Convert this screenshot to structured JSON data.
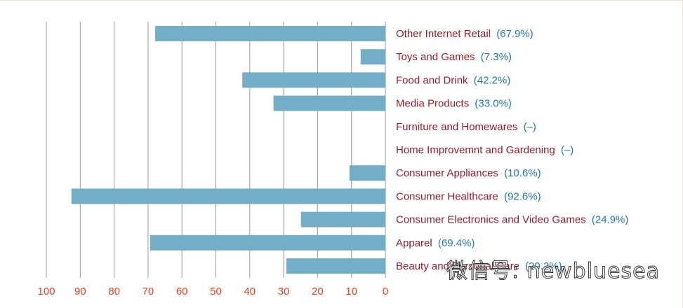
{
  "chart_data": {
    "type": "bar",
    "orientation": "horizontal",
    "direction": "right-to-left",
    "categories": [
      "Other Internet Retail",
      "Toys and Games",
      "Food and Drink",
      "Media Products",
      "Furniture and Homewares",
      "Home Improvemnt and Gardening",
      "Consumer Appliances",
      "Consumer Healthcare",
      "Consumer Electronics and Video Games",
      "Apparel",
      "Beauty and Personal Care"
    ],
    "values": [
      67.9,
      7.3,
      42.2,
      33.0,
      null,
      null,
      10.6,
      92.6,
      24.9,
      69.4,
      29.2
    ],
    "value_labels": [
      "(67.9%)",
      "(7.3%)",
      "(42.2%)",
      "(33.0%)",
      "(–)",
      "(–)",
      "(10.6%)",
      "(92.6%)",
      "(24.9%)",
      "(69.4%)",
      "(29.2%)"
    ],
    "xlim": [
      0,
      100
    ],
    "xticks": [
      "100",
      "90",
      "80",
      "70",
      "60",
      "50",
      "40",
      "30",
      "20",
      "10",
      "0"
    ],
    "grid": "vertical",
    "colors": {
      "bar": "#74adc8",
      "category_text": "#8c1f2e",
      "value_text": "#1f78a8",
      "tick_text": "#e0421f",
      "grid": "#9a9a9a"
    }
  },
  "watermark": "微信号: newbluesea"
}
